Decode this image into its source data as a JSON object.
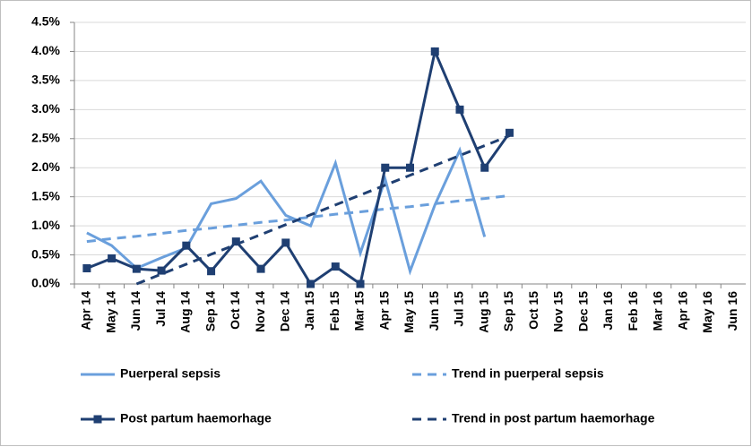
{
  "chart_data": {
    "type": "line",
    "categories": [
      "Apr 14",
      "May 14",
      "Jun 14",
      "Jul 14",
      "Aug 14",
      "Sep 14",
      "Oct 14",
      "Nov 14",
      "Dec 14",
      "Jan 15",
      "Feb 15",
      "Mar 15",
      "Apr 15",
      "May 15",
      "Jun 15",
      "Jul 15",
      "Aug 15",
      "Sep 15",
      "Oct 15",
      "Nov 15",
      "Dec 15",
      "Jan 16",
      "Feb 16",
      "Mar 16",
      "Apr 16",
      "May 16",
      "Jun 16"
    ],
    "series": [
      {
        "name": "Puerperal sepsis",
        "color": "#6a9fdc",
        "dashed": false,
        "marker": "none",
        "values": [
          0.88,
          0.66,
          0.27,
          0.45,
          0.62,
          1.38,
          1.47,
          1.77,
          1.18,
          1.0,
          2.08,
          0.53,
          1.8,
          0.22,
          1.36,
          2.3,
          0.81,
          null,
          null,
          null,
          null,
          null,
          null,
          null,
          null,
          null,
          null
        ]
      },
      {
        "name": "Trend in puerperal sepsis",
        "color": "#6a9fdc",
        "dashed": true,
        "marker": "none",
        "values": [
          0.73,
          0.78,
          0.82,
          0.87,
          0.92,
          0.96,
          1.01,
          1.06,
          1.1,
          1.15,
          1.2,
          1.24,
          1.29,
          1.33,
          1.38,
          1.43,
          1.47,
          1.52,
          null,
          null,
          null,
          null,
          null,
          null,
          null,
          null,
          null
        ]
      },
      {
        "name": "Post partum haemorhage",
        "color": "#1f3f72",
        "dashed": false,
        "marker": "square",
        "values": [
          0.27,
          0.44,
          0.26,
          0.23,
          0.66,
          0.22,
          0.73,
          0.26,
          0.71,
          0,
          0.3,
          0,
          2.0,
          2.0,
          4.0,
          3.0,
          2.0,
          2.6,
          null,
          null,
          null,
          null,
          null,
          null,
          null,
          null,
          null
        ]
      },
      {
        "name": "Trend in post partum haemorhage",
        "color": "#1f3f72",
        "dashed": true,
        "marker": "none",
        "values": [
          null,
          null,
          0,
          0.17,
          0.34,
          0.51,
          0.68,
          0.85,
          1.02,
          1.19,
          1.36,
          1.53,
          1.7,
          1.87,
          2.04,
          2.21,
          2.38,
          2.55,
          null,
          null,
          null,
          null,
          null,
          null,
          null,
          null,
          null
        ]
      }
    ],
    "ylim": [
      0,
      4.5
    ],
    "yticks": [
      {
        "value": 0,
        "label": "0.0%"
      },
      {
        "value": 0.5,
        "label": "0.5%"
      },
      {
        "value": 1,
        "label": "1.0%"
      },
      {
        "value": 1.5,
        "label": "1.5%"
      },
      {
        "value": 2,
        "label": "2.0%"
      },
      {
        "value": 2.5,
        "label": "2.5%"
      },
      {
        "value": 3,
        "label": "3.0%"
      },
      {
        "value": 3.5,
        "label": "3.5%"
      },
      {
        "value": 4,
        "label": "4.0%"
      },
      {
        "value": 4.5,
        "label": "4.5%"
      }
    ],
    "grid": true
  }
}
